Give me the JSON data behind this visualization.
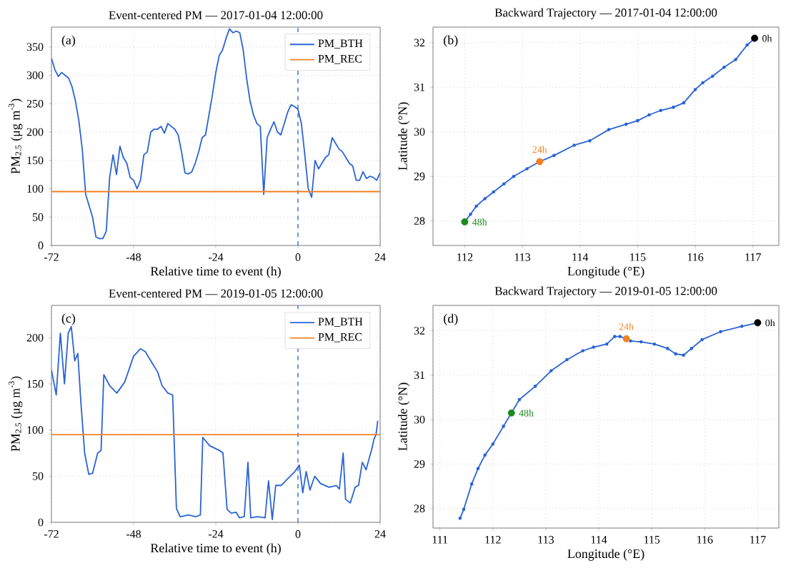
{
  "chart_data": [
    {
      "type": "line",
      "title": "Event-centered PM — 2017-01-04 12:00:00",
      "xlabel": "Relative time to event (h)",
      "ylabel": "PM$_{2.5}$ (μg m$^{-3}$)",
      "xlim": [
        -72,
        24
      ],
      "ylim": [
        0,
        385
      ],
      "xticks": [
        -72,
        -48,
        -24,
        0,
        24
      ],
      "yticks": [
        0,
        50,
        100,
        150,
        200,
        250,
        300,
        350
      ],
      "grid": true,
      "legend": "top right",
      "annotations": [
        "(a)"
      ],
      "ref_lines": [
        {
          "axis": "x",
          "value": 0,
          "color": "#4a7fd8",
          "line_style": "dashed"
        }
      ],
      "series": [
        {
          "name": "PM_BTH",
          "color": "#2a63d4",
          "x": [
            -72,
            -71,
            -70,
            -69,
            -68,
            -67,
            -66,
            -65,
            -64,
            -63,
            -62,
            -61,
            -60,
            -59,
            -58,
            -57,
            -56,
            -55,
            -54,
            -53,
            -52,
            -51,
            -50,
            -49,
            -48,
            -47,
            -46,
            -45,
            -44,
            -43,
            -42,
            -41,
            -40,
            -39,
            -38,
            -37,
            -36,
            -35,
            -34,
            -33,
            -32,
            -31,
            -30,
            -29,
            -28,
            -27,
            -26,
            -25,
            -24,
            -23,
            -22,
            -21,
            -20,
            -19,
            -18,
            -17,
            -16,
            -15,
            -14,
            -13,
            -12,
            -11,
            -10,
            -9,
            -8,
            -7,
            -6,
            -5,
            -4,
            -3,
            -2,
            -1,
            0,
            1,
            2,
            3,
            4,
            5,
            6,
            7,
            8,
            9,
            10,
            11,
            12,
            13,
            14,
            15,
            16,
            17,
            18,
            19,
            20,
            21,
            22,
            23,
            24
          ],
          "values": [
            330,
            310,
            298,
            305,
            300,
            295,
            280,
            255,
            220,
            170,
            90,
            70,
            50,
            15,
            12,
            12,
            25,
            120,
            160,
            125,
            175,
            155,
            145,
            120,
            115,
            100,
            115,
            160,
            165,
            200,
            205,
            205,
            210,
            198,
            215,
            210,
            205,
            195,
            165,
            128,
            126,
            130,
            145,
            165,
            190,
            195,
            230,
            265,
            305,
            335,
            345,
            365,
            382,
            375,
            378,
            375,
            345,
            295,
            255,
            230,
            215,
            210,
            90,
            190,
            205,
            218,
            200,
            195,
            215,
            235,
            248,
            245,
            240,
            215,
            160,
            100,
            85,
            150,
            135,
            145,
            155,
            160,
            190,
            180,
            170,
            165,
            155,
            145,
            140,
            115,
            115,
            130,
            118,
            122,
            120,
            115,
            128
          ]
        },
        {
          "name": "PM_REC",
          "color": "#f28022",
          "x": [
            -72,
            24
          ],
          "values": [
            95,
            95
          ]
        }
      ]
    },
    {
      "type": "line",
      "title": "Backward Trajectory — 2017-01-04 12:00:00",
      "xlabel": "Longitude (°E)",
      "ylabel": "Latitude (°N)",
      "xlim": [
        111.45,
        117.45
      ],
      "ylim": [
        27.45,
        32.35
      ],
      "xticks": [
        112,
        113,
        114,
        115,
        116,
        117
      ],
      "yticks": [
        28,
        29,
        30,
        31,
        32
      ],
      "grid": true,
      "marker": "circle",
      "annotations": [
        "(b)",
        {
          "text": "0h",
          "x": 117.03,
          "y": 32.1
        },
        {
          "text": "24h",
          "x": 113.3,
          "y": 29.33
        },
        {
          "text": "48h",
          "x": 112.0,
          "y": 27.98
        }
      ],
      "series": [
        {
          "color": "#2a63d4",
          "x": [
            117.03,
            116.9,
            116.7,
            116.5,
            116.3,
            116.13,
            116.0,
            115.8,
            115.62,
            115.4,
            115.2,
            115.0,
            114.8,
            114.5,
            114.17,
            113.9,
            113.55,
            113.3,
            113.08,
            112.85,
            112.68,
            112.5,
            112.35,
            112.2,
            112.1,
            112.0
          ],
          "values": [
            32.1,
            31.95,
            31.62,
            31.45,
            31.25,
            31.1,
            30.95,
            30.65,
            30.55,
            30.48,
            30.38,
            30.25,
            30.17,
            30.05,
            29.8,
            29.7,
            29.47,
            29.33,
            29.17,
            29.0,
            28.83,
            28.65,
            28.5,
            28.33,
            28.15,
            27.98
          ]
        },
        {
          "type": "scatter",
          "colors": [
            "#000000",
            "#f28022",
            "#1e8a1e"
          ],
          "x": [
            117.03,
            113.3,
            112.0
          ],
          "values": [
            32.1,
            29.33,
            27.98
          ]
        }
      ]
    },
    {
      "type": "line",
      "title": "Event-centered PM — 2019-01-05 12:00:00",
      "xlabel": "Relative time to event (h)",
      "ylabel": "PM$_{2.5}$ (μg m$^{-3}$)",
      "xlim": [
        -72,
        24
      ],
      "ylim": [
        0,
        235
      ],
      "xticks": [
        -72,
        -48,
        -24,
        0,
        24
      ],
      "yticks": [
        0,
        50,
        100,
        150,
        200
      ],
      "grid": true,
      "legend": "top right",
      "annotations": [
        "(c)"
      ],
      "ref_lines": [
        {
          "axis": "x",
          "value": 0,
          "color": "#4a7fd8",
          "line_style": "dashed"
        }
      ],
      "series": [
        {
          "name": "PM_BTH",
          "color": "#2a63d4",
          "x": [
            -72,
            -70.6,
            -69.4,
            -68.2,
            -67.1,
            -66.2,
            -65.2,
            -64.3,
            -63.4,
            -62.3,
            -61.1,
            -60,
            -58.5,
            -57.5,
            -56.7,
            -55,
            -52.9,
            -50.6,
            -48,
            -46,
            -44.6,
            -42.5,
            -41,
            -39.7,
            -38,
            -36.6,
            -35.5,
            -34.4,
            -32,
            -29.9,
            -28.5,
            -27.8,
            -25.8,
            -23,
            -21.9,
            -20.7,
            -19.5,
            -18.1,
            -17.1,
            -15.7,
            -14.6,
            -13.8,
            -11.8,
            -9.6,
            -8.6,
            -7.5,
            -6.5,
            -4.9,
            -2.8,
            -0.9,
            0.4,
            1.4,
            2.4,
            3.5,
            4.9,
            6.6,
            9.1,
            11.2,
            12.1,
            13.2,
            13.9,
            15.3,
            16.7,
            17.7,
            18.8,
            19.9,
            21.6,
            22.2,
            22.8,
            23.3
          ],
          "values": [
            165,
            138,
            205,
            150,
            205,
            212,
            175,
            183,
            130,
            75,
            52,
            53,
            75,
            78,
            160,
            148,
            140,
            152,
            180,
            188,
            185,
            172,
            163,
            148,
            140,
            138,
            15,
            6,
            8,
            6,
            8,
            92,
            83,
            78,
            75,
            14,
            10,
            11,
            5,
            6,
            65,
            5,
            6,
            5,
            45,
            3,
            40,
            40,
            48,
            55,
            62,
            32,
            55,
            35,
            50,
            42,
            38,
            40,
            36,
            75,
            25,
            21,
            38,
            40,
            65,
            57,
            80,
            90,
            95,
            110
          ]
        },
        {
          "name": "PM_REC",
          "color": "#f28022",
          "x": [
            -72,
            24
          ],
          "values": [
            95,
            95
          ]
        }
      ]
    },
    {
      "type": "line",
      "title": "Backward Trajectory — 2019-01-05 12:00:00",
      "xlabel": "Longitude (°E)",
      "ylabel": "Latitude (°N)",
      "xlim": [
        110.87,
        117.4
      ],
      "ylim": [
        27.56,
        32.57
      ],
      "xticks": [
        111,
        112,
        113,
        114,
        115,
        116,
        117
      ],
      "yticks": [
        28,
        29,
        30,
        31,
        32
      ],
      "grid": true,
      "marker": "circle",
      "annotations": [
        "(d)",
        {
          "text": "0h",
          "x": 117.0,
          "y": 32.18
        },
        {
          "text": "24h",
          "x": 114.52,
          "y": 31.82
        },
        {
          "text": "48h",
          "x": 112.35,
          "y": 30.15
        }
      ],
      "series": [
        {
          "color": "#2a63d4",
          "x": [
            117.0,
            116.7,
            116.3,
            115.95,
            115.75,
            115.6,
            115.45,
            115.3,
            115.05,
            114.8,
            114.6,
            114.52,
            114.4,
            114.3,
            114.15,
            113.9,
            113.7,
            113.4,
            113.1,
            112.8,
            112.5,
            112.35,
            112.2,
            112.0,
            111.85,
            111.72,
            111.6,
            111.45,
            111.38
          ],
          "values": [
            32.18,
            32.1,
            31.98,
            31.8,
            31.6,
            31.45,
            31.48,
            31.6,
            31.7,
            31.75,
            31.77,
            31.82,
            31.87,
            31.87,
            31.7,
            31.63,
            31.55,
            31.35,
            31.1,
            30.75,
            30.45,
            30.15,
            29.85,
            29.45,
            29.2,
            28.9,
            28.55,
            27.98,
            27.78
          ]
        },
        {
          "type": "scatter",
          "colors": [
            "#000000",
            "#f28022",
            "#1e8a1e"
          ],
          "x": [
            117.0,
            114.52,
            112.35
          ],
          "values": [
            32.18,
            31.82,
            30.15
          ]
        }
      ]
    }
  ]
}
